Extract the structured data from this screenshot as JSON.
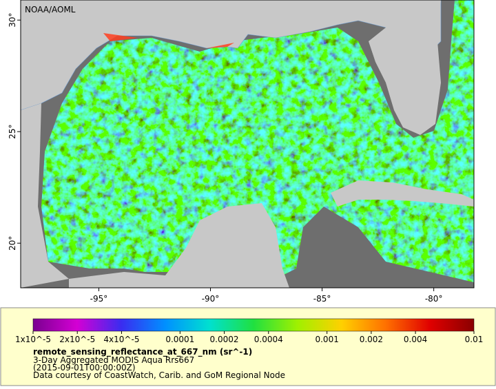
{
  "map": {
    "credit": "NOAA/AOML",
    "xlim": [
      -98.5,
      -78.2
    ],
    "ylim": [
      18,
      30.9
    ],
    "xticks": [
      {
        "value": -95,
        "label": "-95°"
      },
      {
        "value": -90,
        "label": "-90°"
      },
      {
        "value": -85,
        "label": "-85°"
      },
      {
        "value": -80,
        "label": "-80°"
      }
    ],
    "yticks": [
      {
        "value": 20,
        "label": "20°"
      },
      {
        "value": 25,
        "label": "25°"
      },
      {
        "value": 30,
        "label": "30°"
      }
    ]
  },
  "legend": {
    "scale": "log",
    "lim": [
      1e-05,
      0.01
    ],
    "ticks": [
      {
        "value": 1e-05,
        "label": "1x10^-5"
      },
      {
        "value": 2e-05,
        "label": "2x10^-5"
      },
      {
        "value": 4e-05,
        "label": "4x10^-5"
      },
      0.0001,
      0.0002,
      0.0004,
      0.001,
      0.002,
      0.004,
      0.01
    ],
    "colors": [
      "#7a0090",
      "#d400d4",
      "#3a2cf0",
      "#0090ff",
      "#00e0d0",
      "#20e040",
      "#a0f000",
      "#ffd000",
      "#ff7000",
      "#e00000",
      "#8a0000"
    ],
    "title": "remote_sensing_reflectance_at_667_nm (sr^-1)",
    "lines": [
      "3-Day Aggregated MODIS Aqua Rrs667",
      "(2015-09-01T00:00:00Z)",
      "Data courtesy of CoastWatch, Carib. and GoM Regional Node"
    ]
  }
}
